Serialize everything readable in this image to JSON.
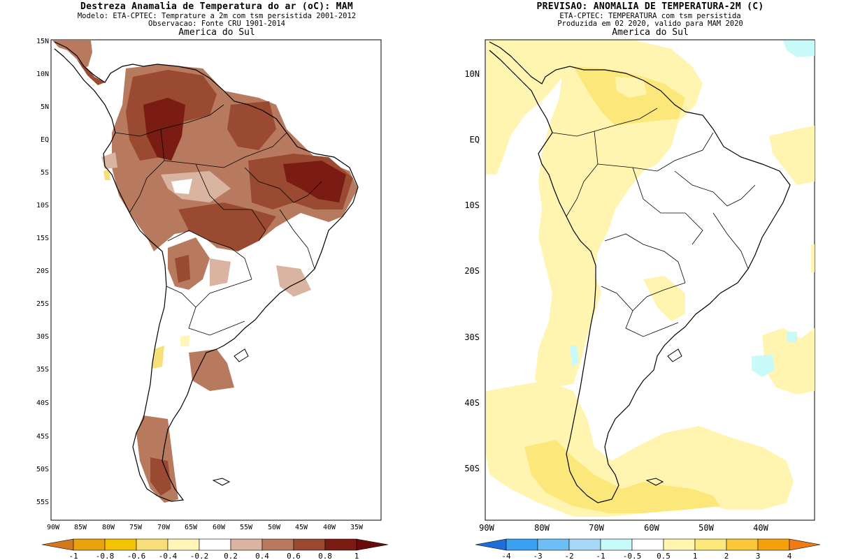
{
  "left_panel": {
    "title": "Destreza Anamalia de Temperatura do ar (oC): MAM",
    "subtitle1": "Modelo: ETA-CPTEC: Temprature a 2m com tsm persistida 2001-2012",
    "subtitle2": "Observacao: Fonte CRU 1901-2014",
    "region": "America do Sul",
    "lat_labels": [
      "15N",
      "10N",
      "5N",
      "EQ",
      "5S",
      "10S",
      "15S",
      "20S",
      "25S",
      "30S",
      "35S",
      "40S",
      "45S",
      "50S",
      "55S"
    ],
    "lon_labels": [
      "90W",
      "85W",
      "80W",
      "75W",
      "70W",
      "65W",
      "60W",
      "55W",
      "50W",
      "45W",
      "40W",
      "35W"
    ],
    "colorbar": {
      "labels": [
        "-1",
        "-0.8",
        "-0.6",
        "-0.4",
        "-0.2",
        "0.2",
        "0.4",
        "0.6",
        "0.8",
        "1"
      ],
      "colors": [
        "#d4781e",
        "#e8a30f",
        "#f5c400",
        "#f7e07a",
        "#fff5b8",
        "#ffffff",
        "#d9b4a0",
        "#b87a5e",
        "#9a4a30",
        "#7a1c14",
        "#6b0a0a"
      ]
    }
  },
  "right_panel": {
    "title": "PREVISAO: ANOMALIA DE TEMPERATURA-2M (C)",
    "subtitle1": "ETA-CPTEC: TEMPERATURA com tsm persistida",
    "subtitle2": "Produzida em 02 2020, valido para MAM 2020",
    "region": "America do Sul",
    "lat_labels": [
      "10N",
      "EQ",
      "10S",
      "20S",
      "30S",
      "40S",
      "50S"
    ],
    "lon_labels": [
      "90W",
      "80W",
      "70W",
      "60W",
      "50W",
      "40W"
    ],
    "colorbar": {
      "labels": [
        "-4",
        "-3",
        "-2",
        "-1",
        "-0.5",
        "0.5",
        "1",
        "2",
        "3",
        "4"
      ],
      "colors": [
        "#1e6ed8",
        "#3aa0f0",
        "#6ebef5",
        "#a8d8f8",
        "#c8fafa",
        "#ffffff",
        "#fff5b0",
        "#fce87a",
        "#f8c83a",
        "#f5a10a",
        "#f07a14"
      ]
    }
  }
}
